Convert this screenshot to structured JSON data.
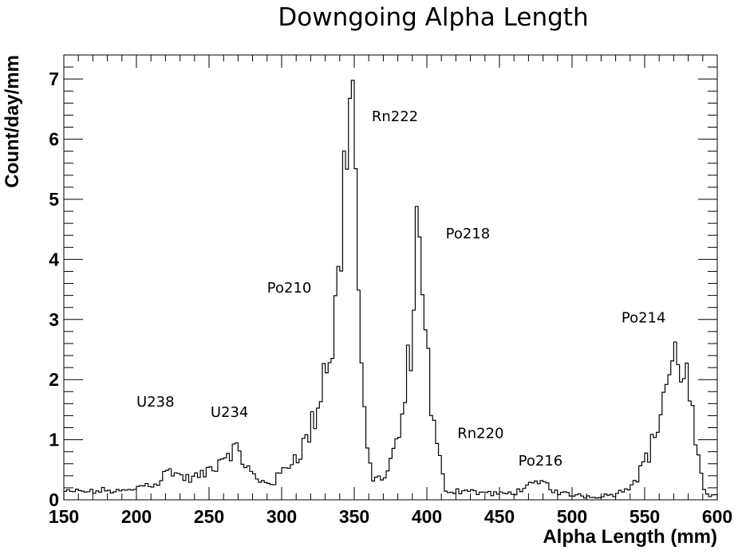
{
  "chart_data": {
    "type": "line",
    "title": "Downgoing Alpha Length",
    "xlabel": "Alpha Length (mm)",
    "ylabel": "Count/day/mm",
    "xlim": [
      150,
      600
    ],
    "ylim": [
      0,
      7.4
    ],
    "xticks": [
      "150",
      "200",
      "250",
      "300",
      "350",
      "400",
      "450",
      "500",
      "550",
      "600"
    ],
    "yticks": [
      "0",
      "1",
      "2",
      "3",
      "4",
      "5",
      "6",
      "7"
    ],
    "grid": false,
    "legend": "none",
    "bin_width_mm": 2,
    "series": [
      {
        "x": [
          150,
          155,
          160,
          165,
          170,
          175,
          180,
          185,
          190,
          195,
          200,
          205,
          210,
          215,
          220,
          225,
          230,
          235,
          240,
          245,
          250,
          255,
          260,
          265,
          270,
          275,
          280,
          285,
          290,
          295,
          300,
          305,
          310,
          315,
          320,
          325,
          330,
          335,
          340,
          343,
          345,
          347,
          350,
          353,
          356,
          360,
          363,
          366,
          370,
          375,
          380,
          385,
          390,
          393,
          395,
          398,
          400,
          403,
          406,
          410,
          413,
          416,
          420,
          425,
          430,
          435,
          440,
          445,
          450,
          455,
          460,
          465,
          470,
          475,
          480,
          485,
          490,
          495,
          500,
          505,
          510,
          515,
          520,
          525,
          530,
          535,
          540,
          545,
          550,
          555,
          560,
          563,
          566,
          570,
          573,
          576,
          580,
          583,
          586,
          590,
          593,
          596,
          600
        ],
        "values": [
          0.15,
          0.12,
          0.15,
          0.14,
          0.13,
          0.15,
          0.16,
          0.14,
          0.15,
          0.15,
          0.2,
          0.25,
          0.26,
          0.28,
          0.45,
          0.5,
          0.4,
          0.35,
          0.38,
          0.4,
          0.5,
          0.6,
          0.75,
          0.85,
          0.8,
          0.6,
          0.4,
          0.3,
          0.3,
          0.3,
          0.45,
          0.6,
          0.75,
          0.9,
          1.15,
          1.6,
          2.3,
          2.6,
          3.8,
          5.2,
          6.6,
          6.8,
          6.2,
          3.6,
          1.5,
          0.6,
          0.4,
          0.35,
          0.35,
          0.6,
          1.0,
          1.6,
          3.0,
          4.4,
          4.3,
          3.8,
          2.6,
          1.5,
          1.0,
          0.5,
          0.2,
          0.12,
          0.15,
          0.15,
          0.16,
          0.12,
          0.12,
          0.1,
          0.1,
          0.1,
          0.12,
          0.18,
          0.22,
          0.25,
          0.3,
          0.2,
          0.12,
          0.1,
          0.08,
          0.08,
          0.06,
          0.06,
          0.06,
          0.08,
          0.1,
          0.15,
          0.25,
          0.4,
          0.65,
          0.9,
          1.35,
          1.8,
          2.0,
          2.3,
          2.4,
          2.3,
          1.9,
          1.3,
          0.8,
          0.2,
          0.08,
          0.05,
          0.15
        ]
      }
    ],
    "annotations": [
      {
        "text": "U238",
        "x": 200,
        "y": 1.55
      },
      {
        "text": "U234",
        "x": 251,
        "y": 1.38
      },
      {
        "text": "Po210",
        "x": 290,
        "y": 3.45
      },
      {
        "text": "Rn222",
        "x": 362,
        "y": 6.3
      },
      {
        "text": "Po218",
        "x": 413,
        "y": 4.35
      },
      {
        "text": "Rn220",
        "x": 421,
        "y": 1.03
      },
      {
        "text": "Po216",
        "x": 463,
        "y": 0.57
      },
      {
        "text": "Po214",
        "x": 534,
        "y": 2.95
      }
    ]
  }
}
